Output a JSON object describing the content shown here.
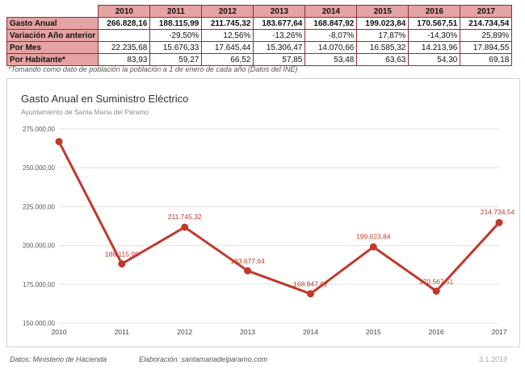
{
  "table": {
    "years": [
      "2010",
      "2011",
      "2012",
      "2013",
      "2014",
      "2015",
      "2016",
      "2017"
    ],
    "rows": [
      {
        "label": "Gasto Anual",
        "values": [
          "266.828,16",
          "188.115,99",
          "211.745,32",
          "183.677,64",
          "168.847,92",
          "199.023,84",
          "170.567,51",
          "214.734,54"
        ]
      },
      {
        "label": "Variación Año anterior",
        "values": [
          "",
          "-29,50%",
          "12,56%",
          "-13,26%",
          "-8,07%",
          "17,87%",
          "-14,30%",
          "25,89%"
        ]
      },
      {
        "label": "Por Mes",
        "values": [
          "22.235,68",
          "15.676,33",
          "17.645,44",
          "15.306,47",
          "14.070,66",
          "16.585,32",
          "14.213,96",
          "17.894,55"
        ]
      },
      {
        "label": "Por Habitante*",
        "values": [
          "83,93",
          "59,27",
          "66,52",
          "57,85",
          "53,48",
          "63,63",
          "54,30",
          "69,18"
        ]
      }
    ],
    "note": "*Tomando como dato de población la población a 1 de enero de cada año (Datos del INE)"
  },
  "chart_data": {
    "type": "line",
    "title": "Gasto Anual en Suministro Eléctrico",
    "subtitle": "Ayuntamiento de Santa María del Páramo",
    "x": [
      "2010",
      "2011",
      "2012",
      "2013",
      "2014",
      "2015",
      "2016",
      "2017"
    ],
    "values": [
      266828.16,
      188115.99,
      211745.32,
      183677.64,
      168847.92,
      199023.84,
      170567.51,
      214734.54
    ],
    "point_labels": [
      "",
      "188.115,99",
      "211.745,32",
      "183.677,64",
      "168.847,92",
      "199.023,84",
      "170.567,51",
      "214.734,54"
    ],
    "ylim": [
      150000,
      275000
    ],
    "yticks": [
      150000,
      175000,
      200000,
      225000,
      250000,
      275000
    ],
    "ytick_labels": [
      "150.000,00",
      "175.000,00",
      "200.000,00",
      "225.000,00",
      "250.000,00",
      "275.000,00"
    ],
    "grid": true,
    "line_color": "#c0392b",
    "grid_color": "#e2e2e2"
  },
  "footer": {
    "source": "Datos: Ministerio de Hacienda",
    "credit": "Elaboración: santamariadelparamo.com",
    "date": "3.1.2019"
  }
}
